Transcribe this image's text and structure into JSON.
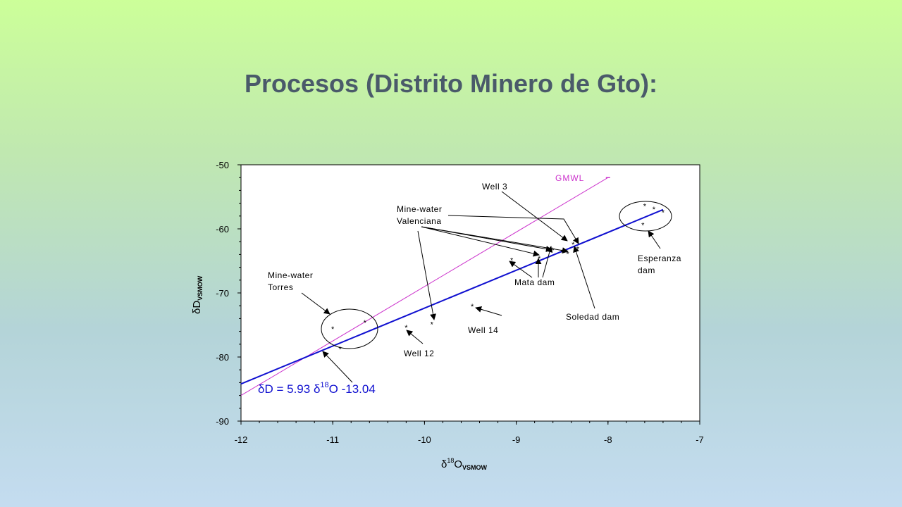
{
  "slide": {
    "title": "Procesos (Distrito Minero de Gto):"
  },
  "chart_data": {
    "type": "scatter",
    "xlim": [
      -12,
      -7
    ],
    "ylim": [
      -90,
      -50
    ],
    "xticks": [
      -12,
      -11,
      -10,
      -9,
      -8,
      -7
    ],
    "yticks": [
      -50,
      -60,
      -70,
      -80,
      -90
    ],
    "x_tick_labels": [
      "-12",
      "-11",
      "-10",
      "-9",
      "-8",
      "-7"
    ],
    "y_tick_labels": [
      "-50",
      "-60",
      "-70",
      "-80",
      "-90"
    ],
    "xlabel": {
      "symbol": "δ",
      "sup": "18",
      "main": "O",
      "sub": "VSMOW"
    },
    "ylabel": {
      "symbol": "δ",
      "main": "D",
      "sub": "VSMOW"
    },
    "grid": false,
    "marker": "*",
    "points": [
      {
        "x": -11.0,
        "y": -75.5
      },
      {
        "x": -10.65,
        "y": -74.5
      },
      {
        "x": -10.92,
        "y": -78.6
      },
      {
        "x": -10.2,
        "y": -75.3
      },
      {
        "x": -9.92,
        "y": -74.8
      },
      {
        "x": -9.48,
        "y": -72.0
      },
      {
        "x": -9.05,
        "y": -64.8
      },
      {
        "x": -8.75,
        "y": -64.5
      },
      {
        "x": -8.6,
        "y": -63.2
      },
      {
        "x": -8.5,
        "y": -63.5
      },
      {
        "x": -8.44,
        "y": -63.8
      },
      {
        "x": -8.38,
        "y": -62.3
      },
      {
        "x": -8.33,
        "y": -63.0
      },
      {
        "x": -7.6,
        "y": -56.3
      },
      {
        "x": -7.5,
        "y": -56.8
      },
      {
        "x": -7.4,
        "y": -57.3
      },
      {
        "x": -7.62,
        "y": -59.3
      }
    ],
    "lines": [
      {
        "label": "GMWL",
        "color": "#cc33cc",
        "x": [
          -12,
          -8
        ],
        "y": [
          -86,
          -52
        ]
      },
      {
        "label": "δD = 5.93 δ18O -13.04",
        "color": "#1010d0",
        "x": [
          -12,
          -7.4
        ],
        "y": [
          -84.2,
          -57.0
        ]
      }
    ],
    "equation": {
      "prefix": "δD = 5.93 ",
      "delta": "δ",
      "sup": "18",
      "suffix": "O -13.04"
    },
    "annotations": [
      {
        "text": "GMWL"
      },
      {
        "text": "Well 3"
      },
      {
        "text": "Mine-water"
      },
      {
        "text": "Valenciana"
      },
      {
        "text": "Mine-water"
      },
      {
        "text": "Torres"
      },
      {
        "text": "Esperanza"
      },
      {
        "text": "dam"
      },
      {
        "text": "Mata dam"
      },
      {
        "text": "Soledad dam"
      },
      {
        "text": "Well 14"
      },
      {
        "text": "Well 12"
      }
    ]
  }
}
